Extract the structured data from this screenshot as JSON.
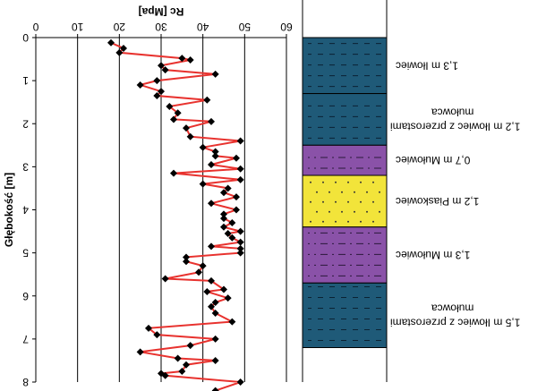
{
  "chart_data": {
    "type": "line",
    "orientation": "vertical-depth-profile",
    "image_rotation_deg": 180,
    "x_axis_title": "Rc [Mpa]",
    "y_axis_title": "Głębokość [m]",
    "x_ticks": [
      "0",
      "10",
      "20",
      "30",
      "40",
      "50",
      "60"
    ],
    "y_ticks": [
      "0",
      "1",
      "2",
      "3",
      "4",
      "5",
      "6",
      "7",
      "8"
    ],
    "xlim": [
      0,
      60
    ],
    "ylim": [
      0,
      8
    ],
    "grid": "vertical",
    "line_color": "#e8322e",
    "marker_color": "#000000",
    "marker": "diamond",
    "series": [
      {
        "x": [
          18,
          21,
          20,
          35,
          37,
          30,
          31,
          43,
          29,
          25,
          30,
          29,
          41,
          32,
          34,
          33,
          42,
          36,
          37,
          49,
          40,
          43,
          43,
          48,
          42,
          49,
          33,
          49,
          40,
          46,
          45,
          48,
          42,
          48,
          45,
          45,
          47,
          45,
          49,
          46,
          47,
          49,
          42,
          49,
          49,
          36,
          36,
          40,
          39,
          31,
          42,
          45,
          41,
          46,
          43,
          42,
          43,
          47,
          27,
          29,
          43,
          37,
          25,
          34,
          43,
          36,
          35,
          30,
          31,
          49,
          43,
          43
        ],
        "y": [
          0.12,
          0.25,
          0.35,
          0.48,
          0.52,
          0.65,
          0.75,
          0.85,
          1.0,
          1.1,
          1.25,
          1.35,
          1.45,
          1.6,
          1.75,
          1.9,
          1.95,
          2.1,
          2.3,
          2.4,
          2.55,
          2.65,
          2.75,
          2.8,
          2.95,
          3.05,
          3.15,
          3.3,
          3.4,
          3.5,
          3.6,
          3.7,
          3.85,
          4.0,
          4.1,
          4.2,
          4.3,
          4.4,
          4.5,
          4.55,
          4.65,
          4.75,
          4.85,
          4.9,
          5.0,
          5.1,
          5.2,
          5.3,
          5.45,
          5.6,
          5.65,
          5.85,
          5.9,
          6.05,
          6.15,
          6.25,
          6.4,
          6.6,
          6.75,
          6.9,
          7.0,
          7.15,
          7.3,
          7.45,
          7.5,
          7.6,
          7.75,
          7.8,
          7.85,
          8.0,
          8.2,
          8.25
        ]
      }
    ]
  },
  "lithology": [
    {
      "label": "1,3 m Iłowiec",
      "color": "#1f5a78",
      "pattern": "dashes",
      "top": 0.0,
      "bottom": 1.3
    },
    {
      "label_line1": "1,2 m Iłowiec z przerostami",
      "label_line2": "mułowca",
      "color": "#1f5a78",
      "pattern": "dashes",
      "top": 1.3,
      "bottom": 2.5
    },
    {
      "label": "0,7 m Mułowiec",
      "color": "#8a52a8",
      "pattern": "dashdot",
      "top": 2.5,
      "bottom": 3.2
    },
    {
      "label": "1,2 m Piaskowiec",
      "color": "#f2e43a",
      "pattern": "dots",
      "top": 3.2,
      "bottom": 4.4
    },
    {
      "label": "1,3 m Mułowiec",
      "color": "#8a52a8",
      "pattern": "dashdot",
      "top": 4.4,
      "bottom": 5.7
    },
    {
      "label_line1": "1,5 m Iłowiec z przerostami",
      "label_line2": "mułowca",
      "color": "#1f5a78",
      "pattern": "dashes",
      "top": 5.7,
      "bottom": 7.2
    }
  ]
}
